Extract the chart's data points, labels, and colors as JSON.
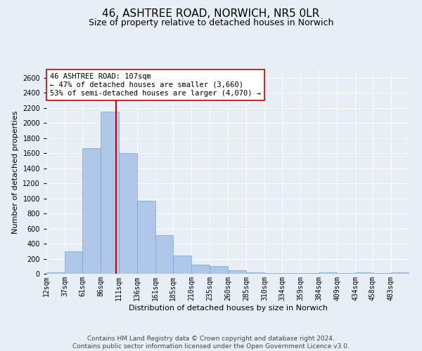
{
  "title": "46, ASHTREE ROAD, NORWICH, NR5 0LR",
  "subtitle": "Size of property relative to detached houses in Norwich",
  "xlabel": "Distribution of detached houses by size in Norwich",
  "ylabel": "Number of detached properties",
  "bar_color": "#aec6e8",
  "bar_edgecolor": "#7aa8d0",
  "vline_x": 107,
  "vline_color": "#cc0000",
  "annotation_lines": [
    "46 ASHTREE ROAD: 107sqm",
    "← 47% of detached houses are smaller (3,660)",
    "53% of semi-detached houses are larger (4,070) →"
  ],
  "annotation_box_color": "#ffffff",
  "annotation_box_edgecolor": "#cc0000",
  "footer_lines": [
    "Contains HM Land Registry data © Crown copyright and database right 2024.",
    "Contains public sector information licensed under the Open Government Licence v3.0."
  ],
  "bin_edges": [
    12,
    37,
    61,
    86,
    111,
    136,
    161,
    185,
    210,
    235,
    260,
    285,
    310,
    334,
    359,
    384,
    409,
    434,
    458,
    483,
    508
  ],
  "bin_values": [
    20,
    300,
    1670,
    2150,
    1600,
    970,
    510,
    245,
    120,
    100,
    45,
    15,
    5,
    5,
    5,
    20,
    5,
    15,
    5,
    20
  ],
  "ylim": [
    0,
    2700
  ],
  "yticks": [
    0,
    200,
    400,
    600,
    800,
    1000,
    1200,
    1400,
    1600,
    1800,
    2000,
    2200,
    2400,
    2600
  ],
  "background_color": "#e8eef5",
  "plot_background_color": "#e8eef5",
  "title_fontsize": 11,
  "subtitle_fontsize": 9,
  "label_fontsize": 8,
  "tick_fontsize": 7,
  "footer_fontsize": 6.5,
  "annotation_fontsize": 7.5
}
